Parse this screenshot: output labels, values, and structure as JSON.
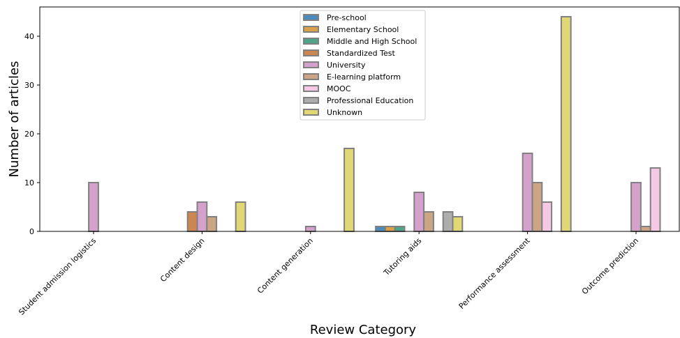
{
  "chart_data": {
    "type": "bar",
    "title": "",
    "xlabel": "Review Category",
    "ylabel": "Number of articles",
    "ylim": [
      0,
      46
    ],
    "yticks": [
      0,
      10,
      20,
      30,
      40
    ],
    "grid": false,
    "legend_position": "top-center",
    "categories": [
      "Student admission logistics",
      "Content design",
      "Content generation",
      "Tutoring aids",
      "Performance assessment",
      "Outcome prediction"
    ],
    "series": [
      {
        "name": "Pre-school",
        "color": "#4b8bbe",
        "values": [
          0,
          0,
          0,
          1,
          0,
          0
        ]
      },
      {
        "name": "Elementary School",
        "color": "#d9a24a",
        "values": [
          0,
          0,
          0,
          1,
          0,
          0
        ]
      },
      {
        "name": "Middle and High School",
        "color": "#4fa58a",
        "values": [
          0,
          0,
          0,
          1,
          0,
          0
        ]
      },
      {
        "name": "Standardized Test",
        "color": "#cc8751",
        "values": [
          0,
          4,
          0,
          0,
          0,
          0
        ]
      },
      {
        "name": "University",
        "color": "#d4a1cc",
        "values": [
          10,
          6,
          1,
          8,
          16,
          10
        ]
      },
      {
        "name": "E-learning platform",
        "color": "#cca585",
        "values": [
          0,
          3,
          0,
          4,
          10,
          1
        ]
      },
      {
        "name": "MOOC",
        "color": "#f5c8e4",
        "values": [
          0,
          0,
          0,
          0,
          6,
          13
        ]
      },
      {
        "name": "Professional Education",
        "color": "#adadad",
        "values": [
          0,
          0,
          0,
          4,
          0,
          0
        ]
      },
      {
        "name": "Unknown",
        "color": "#e2d775",
        "values": [
          0,
          6,
          17,
          3,
          44,
          0
        ]
      }
    ]
  }
}
